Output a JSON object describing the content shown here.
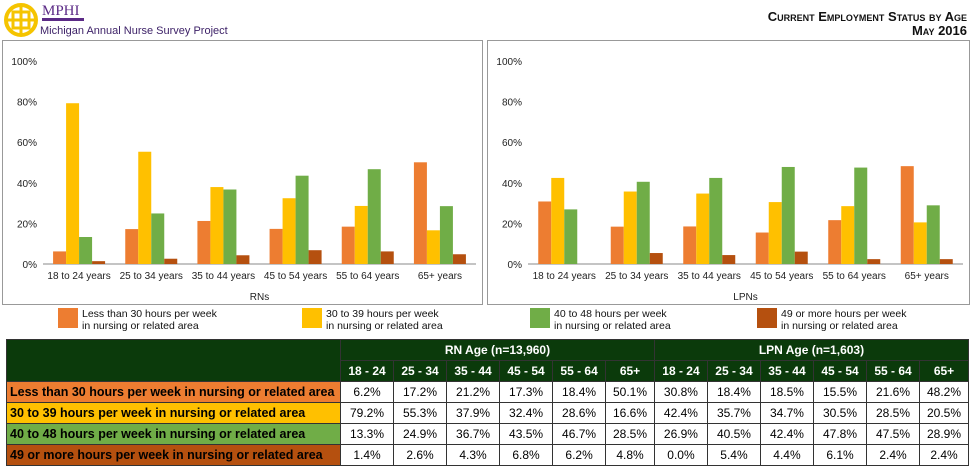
{
  "header": {
    "brand": "MPHI",
    "project": "Michigan Annual Nurse Survey Project",
    "title_line1": "Current Employment Status by Age",
    "title_line2": "May 2016"
  },
  "colors": {
    "s0": "#ED7D31",
    "s1": "#FFC000",
    "s2": "#70AD47",
    "s3": "#B5500F",
    "header_bg": "#0B3A0B"
  },
  "chart_data": [
    {
      "type": "bar",
      "xlabel": "RNs",
      "ylim": [
        0,
        100
      ],
      "yticks": [
        "0%",
        "20%",
        "40%",
        "60%",
        "80%",
        "100%"
      ],
      "categories": [
        "18 to 24 years",
        "25 to 34 years",
        "35 to 44 years",
        "45 to 54 years",
        "55 to 64 years",
        "65+ years"
      ],
      "series": [
        {
          "name": "Less than 30 hours per week in nursing or related area",
          "values": [
            6.2,
            17.2,
            21.2,
            17.3,
            18.4,
            50.1
          ]
        },
        {
          "name": "30 to 39 hours per week in nursing or related area",
          "values": [
            79.2,
            55.3,
            37.9,
            32.4,
            28.6,
            16.6
          ]
        },
        {
          "name": "40 to 48 hours per week in nursing or related area",
          "values": [
            13.3,
            24.9,
            36.7,
            43.5,
            46.7,
            28.5
          ]
        },
        {
          "name": "49 or more hours per week in nursing or related area",
          "values": [
            1.4,
            2.6,
            4.3,
            6.8,
            6.2,
            4.8
          ]
        }
      ]
    },
    {
      "type": "bar",
      "xlabel": "LPNs",
      "ylim": [
        0,
        100
      ],
      "yticks": [
        "0%",
        "20%",
        "40%",
        "60%",
        "80%",
        "100%"
      ],
      "categories": [
        "18 to 24 years",
        "25 to 34 years",
        "35 to 44 years",
        "45 to 54 years",
        "55 to 64 years",
        "65+ years"
      ],
      "series": [
        {
          "name": "Less than 30 hours per week in nursing or related area",
          "values": [
            30.8,
            18.4,
            18.5,
            15.5,
            21.6,
            48.2
          ]
        },
        {
          "name": "30 to 39 hours per week in nursing or related area",
          "values": [
            42.4,
            35.7,
            34.7,
            30.5,
            28.5,
            20.5
          ]
        },
        {
          "name": "40 to 48 hours per week in nursing or related area",
          "values": [
            26.9,
            40.5,
            42.4,
            47.8,
            47.5,
            28.9
          ]
        },
        {
          "name": "49 or more hours per week in nursing or related area",
          "values": [
            0.0,
            5.4,
            4.4,
            6.1,
            2.4,
            2.4
          ]
        }
      ]
    }
  ],
  "legend": [
    {
      "line1": "Less than 30 hours per week",
      "line2": "in nursing or related area"
    },
    {
      "line1": "30 to 39 hours per week",
      "line2": "in nursing or related area"
    },
    {
      "line1": "40 to 48 hours per week",
      "line2": "in nursing or related area"
    },
    {
      "line1": "49 or more hours per week",
      "line2": "in nursing or related area"
    }
  ],
  "table": {
    "group_headers": [
      "RN Age (n=13,960)",
      "LPN Age (n=1,603)"
    ],
    "age_headers": [
      "18 - 24",
      "25 - 34",
      "35 - 44",
      "45 - 54",
      "55 - 64",
      "65+"
    ],
    "rows": [
      {
        "label": "Less than 30 hours per week in nursing or related area",
        "cells": [
          "6.2%",
          "17.2%",
          "21.2%",
          "17.3%",
          "18.4%",
          "50.1%",
          "30.8%",
          "18.4%",
          "18.5%",
          "15.5%",
          "21.6%",
          "48.2%"
        ]
      },
      {
        "label": "30 to 39 hours per week in nursing or related area",
        "cells": [
          "79.2%",
          "55.3%",
          "37.9%",
          "32.4%",
          "28.6%",
          "16.6%",
          "42.4%",
          "35.7%",
          "34.7%",
          "30.5%",
          "28.5%",
          "20.5%"
        ]
      },
      {
        "label": "40 to 48 hours per week in nursing or related area",
        "cells": [
          "13.3%",
          "24.9%",
          "36.7%",
          "43.5%",
          "46.7%",
          "28.5%",
          "26.9%",
          "40.5%",
          "42.4%",
          "47.8%",
          "47.5%",
          "28.9%"
        ]
      },
      {
        "label": "49 or more hours per week in nursing or related area",
        "cells": [
          "1.4%",
          "2.6%",
          "4.3%",
          "6.8%",
          "6.2%",
          "4.8%",
          "0.0%",
          "5.4%",
          "4.4%",
          "6.1%",
          "2.4%",
          "2.4%"
        ]
      }
    ]
  }
}
